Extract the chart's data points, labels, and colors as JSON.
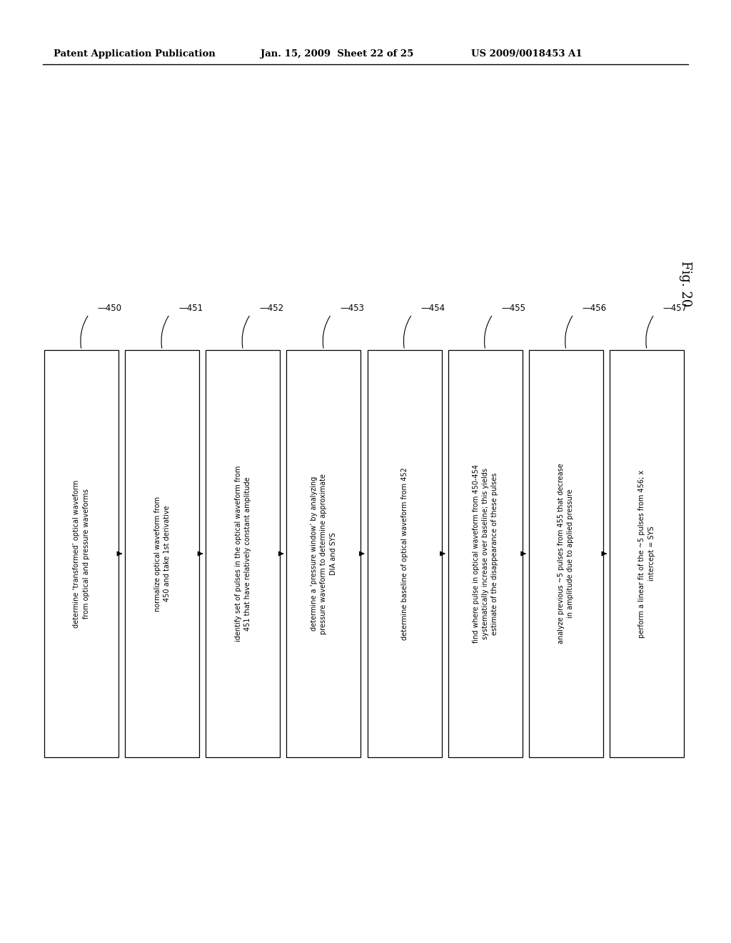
{
  "title_left": "Patent Application Publication",
  "title_center": "Jan. 15, 2009  Sheet 22 of 25",
  "title_right": "US 2009/0018453 A1",
  "fig_label": "Fig. 20",
  "background_color": "#ffffff",
  "boxes": [
    {
      "id": "450",
      "label": "450",
      "text": "determine ‘transformed’ optical waveform\nfrom optical and pressure waveforms"
    },
    {
      "id": "451",
      "label": "451",
      "text": "normalize optical waveform from\n450 and take 1st derivative"
    },
    {
      "id": "452",
      "label": "452",
      "text": "identify set of pulses in the optical waveform from\n451 that have relatively constant amplitude"
    },
    {
      "id": "453",
      "label": "453",
      "text": "determine a ‘pressure window’ by analyzing\npressure waveform to determine approximate\nDIA and SYS"
    },
    {
      "id": "454",
      "label": "454",
      "text": "determine baseline of optical waveform from 452"
    },
    {
      "id": "455",
      "label": "455",
      "text": "find where pulse in optical waveform from 450-454\nsystematically increase over baseline; this yields\nestimate of the disappearance of these pulses"
    },
    {
      "id": "456",
      "label": "456",
      "text": "analyze previous ~5 pulses from 455 that decrease\nin amplitude due to applied pressure"
    },
    {
      "id": "457",
      "label": "457",
      "text": "perform a linear fit of the ~5 pulses from 456; x\nintercept = SYS"
    }
  ]
}
